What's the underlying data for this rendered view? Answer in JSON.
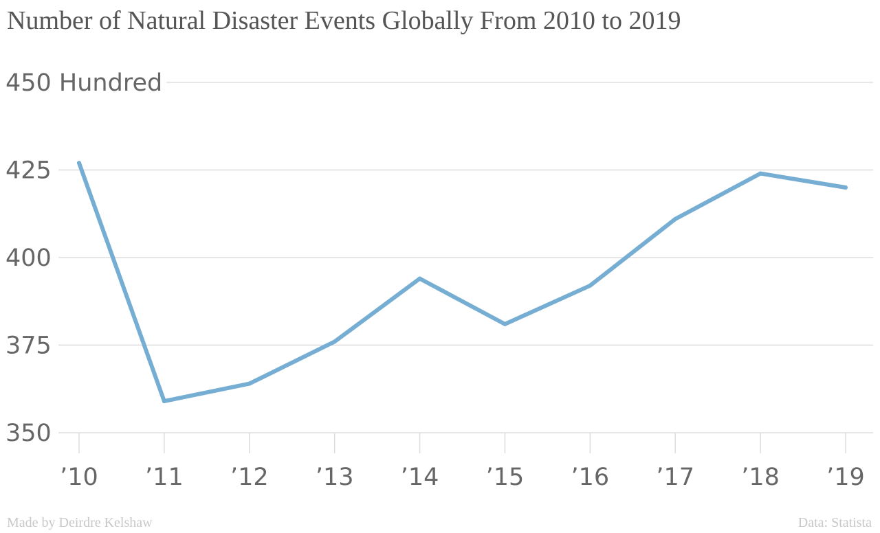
{
  "chart_data": {
    "type": "line",
    "title": "Number of Natural Disaster Events Globally From 2010 to 2019",
    "xlabel": "",
    "ylabel": "",
    "categories": [
      "’10",
      "’11",
      "’12",
      "’13",
      "’14",
      "’15",
      "’16",
      "’17",
      "’18",
      "’19"
    ],
    "series": [
      {
        "values": [
          427,
          359,
          364,
          376,
          394,
          381,
          392,
          411,
          424,
          420
        ]
      }
    ],
    "ylim": [
      350,
      450
    ],
    "yticks": [
      350,
      375,
      400,
      425,
      450
    ],
    "ytick_labels": [
      "350",
      "375",
      "400",
      "425",
      "450 Hundred"
    ],
    "grid": true,
    "line_color": "#76aed3",
    "grid_color": "#dddddd"
  },
  "footer": {
    "credit": "Made by Deirdre Kelshaw",
    "source": "Data: Statista"
  }
}
